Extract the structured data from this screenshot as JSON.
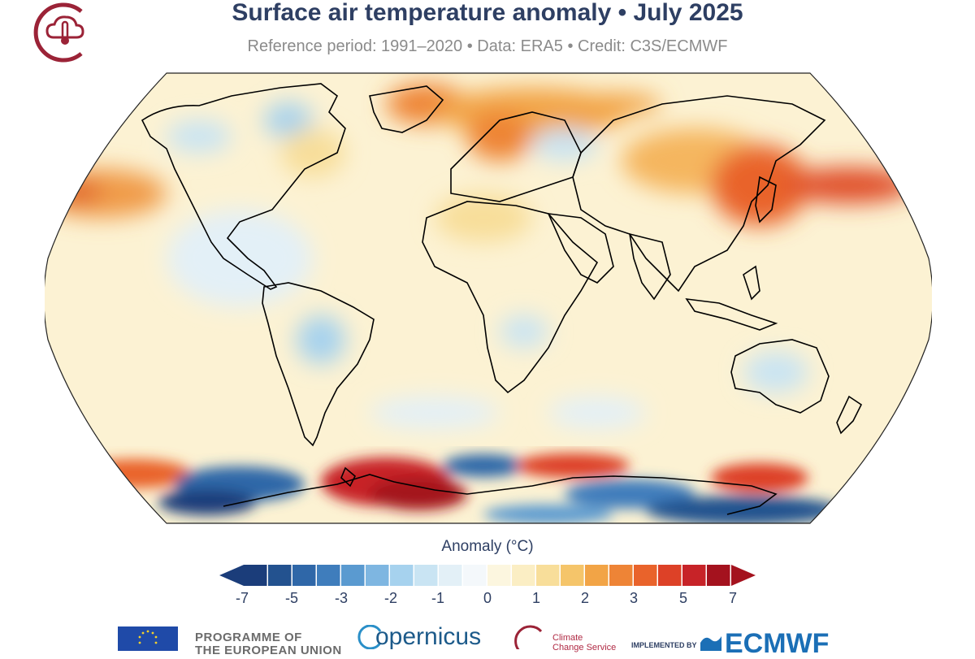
{
  "header": {
    "title": "Surface air temperature anomaly • July 2025",
    "subtitle": "Reference period: 1991–2020 • Data: ERA5 • Credit: C3S/ECMWF"
  },
  "map": {
    "projection": "Robinson",
    "variable": "Surface air temperature anomaly"
  },
  "legend": {
    "title": "Anomaly (°C)",
    "ticks": [
      "-7",
      "-5",
      "-3",
      "-2",
      "-1",
      "0",
      "1",
      "2",
      "3",
      "5",
      "7"
    ],
    "colors_cold": [
      "#1b3d7a",
      "#23528f",
      "#2f67a8",
      "#3f7dbc",
      "#5a9ad0",
      "#7eb6e1",
      "#a6d2ee",
      "#c9e4f3",
      "#e3f0f7",
      "#f4f8fb"
    ],
    "colors_warm": [
      "#fcf6df",
      "#fbeec4",
      "#f8de9a",
      "#f5c56a",
      "#f2a446",
      "#ee8436",
      "#e9632b",
      "#dd4127",
      "#c72328",
      "#a4121e"
    ]
  },
  "footer": {
    "programme_line1": "PROGRAMME OF",
    "programme_line2": "THE EUROPEAN UNION",
    "copernicus": "opernicus",
    "c3s_line1": "Climate",
    "c3s_line2": "Change Service",
    "implemented_by": "IMPLEMENTED BY",
    "ecmwf": "ECMWF"
  }
}
